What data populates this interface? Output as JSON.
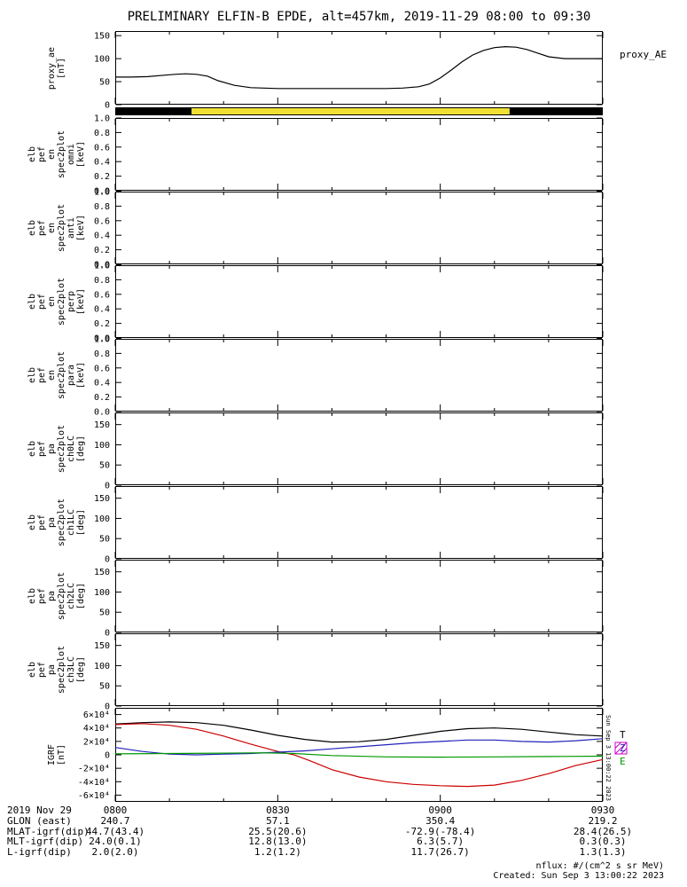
{
  "title": "PRELIMINARY ELFIN-B EPDE, alt=457km, 2019-11-29 08:00 to 09:30",
  "right_label": "proxy_AE",
  "side_timestamp": "Sun Sep  3 13:00:22 2023",
  "footer": {
    "nflux_note": "nflux: #/(cm^2 s sr MeV)",
    "created": "Created: Sun Sep  3 13:00:22 2023"
  },
  "x_axis": {
    "ticks": [
      "0800",
      "0830",
      "0900",
      "0930"
    ],
    "minutes": [
      0,
      30,
      60,
      90
    ],
    "minor_minutes": [
      10,
      20,
      40,
      50,
      70,
      80
    ],
    "range_minutes": [
      0,
      90
    ]
  },
  "ephemeris": {
    "date_label": "2019 Nov 29",
    "rows": [
      {
        "label": "GLON (east)",
        "values": [
          "240.7",
          "57.1",
          "350.4",
          "219.2"
        ]
      },
      {
        "label": "MLAT-igrf(dip)",
        "values": [
          "44.7(43.4)",
          "25.5(20.6)",
          "-72.9(-78.4)",
          "28.4(26.5)"
        ]
      },
      {
        "label": "MLT-igrf(dip)",
        "values": [
          "24.0(0.1)",
          "12.8(13.0)",
          "6.3(5.7)",
          "0.3(0.3)"
        ]
      },
      {
        "label": "L-igrf(dip)",
        "values": [
          "2.0(2.0)",
          "1.2(1.2)",
          "11.7(26.7)",
          "1.3(1.3)"
        ]
      }
    ]
  },
  "chart_data": [
    {
      "id": "proxy_ae",
      "type": "line",
      "ylabel_lines": [
        "proxy_ae",
        "[nT]"
      ],
      "ylim": [
        0,
        160
      ],
      "yticks": [
        0,
        50,
        100,
        150
      ],
      "ytick_labels": [
        "0",
        "50",
        "100",
        "150"
      ],
      "series": [
        {
          "name": "proxy_ae",
          "color": "#000000",
          "x": [
            0,
            3,
            6,
            9,
            11,
            13,
            15,
            17,
            19,
            22,
            25,
            30,
            35,
            40,
            45,
            50,
            53,
            56,
            58,
            60,
            62,
            64,
            66,
            68,
            70,
            72,
            74,
            76,
            78,
            80,
            83,
            86,
            90
          ],
          "y": [
            60,
            60,
            61,
            64,
            66,
            67,
            66,
            62,
            52,
            42,
            37,
            35,
            35,
            35,
            35,
            35,
            36,
            39,
            45,
            58,
            75,
            93,
            108,
            118,
            124,
            126,
            125,
            120,
            112,
            104,
            100,
            100,
            100
          ]
        }
      ]
    },
    {
      "id": "flag_bar",
      "type": "bar-strip",
      "segments": [
        {
          "name": "black-left",
          "start": 0,
          "end": 14.1,
          "color": "#000000"
        },
        {
          "name": "yellow",
          "start": 14.1,
          "end": 72.8,
          "color": "#efe033"
        },
        {
          "name": "black-right",
          "start": 72.8,
          "end": 90,
          "color": "#000000"
        }
      ]
    },
    {
      "id": "en_omni",
      "type": "spectrogram",
      "ylabel_lines": [
        "elb",
        "pef",
        "en",
        "spec2plot",
        "omni",
        "[keV]"
      ],
      "ylim": [
        0,
        1
      ],
      "yticks": [
        0,
        0.2,
        0.4,
        0.6,
        0.8,
        1.0
      ],
      "ytick_labels": [
        "0.0",
        "0.2",
        "0.4",
        "0.6",
        "0.8",
        "1.0"
      ],
      "series": []
    },
    {
      "id": "en_anti",
      "type": "spectrogram",
      "ylabel_lines": [
        "elb",
        "pef",
        "en",
        "spec2plot",
        "anti",
        "[keV]"
      ],
      "ylim": [
        0,
        1
      ],
      "yticks": [
        0,
        0.2,
        0.4,
        0.6,
        0.8,
        1.0
      ],
      "ytick_labels": [
        "0.0",
        "0.2",
        "0.4",
        "0.6",
        "0.8",
        "1.0"
      ],
      "series": []
    },
    {
      "id": "en_perp",
      "type": "spectrogram",
      "ylabel_lines": [
        "elb",
        "pef",
        "en",
        "spec2plot",
        "perp",
        "[keV]"
      ],
      "ylim": [
        0,
        1
      ],
      "yticks": [
        0,
        0.2,
        0.4,
        0.6,
        0.8,
        1.0
      ],
      "ytick_labels": [
        "0.0",
        "0.2",
        "0.4",
        "0.6",
        "0.8",
        "1.0"
      ],
      "series": []
    },
    {
      "id": "en_para",
      "type": "spectrogram",
      "ylabel_lines": [
        "elb",
        "pef",
        "en",
        "spec2plot",
        "para",
        "[keV]"
      ],
      "ylim": [
        0,
        1
      ],
      "yticks": [
        0,
        0.2,
        0.4,
        0.6,
        0.8,
        1.0
      ],
      "ytick_labels": [
        "0.0",
        "0.2",
        "0.4",
        "0.6",
        "0.8",
        "1.0"
      ],
      "series": []
    },
    {
      "id": "pa_ch0",
      "type": "spectrogram",
      "ylabel_lines": [
        "elb",
        "pef",
        "pa",
        "spec2plot",
        "ch0LC",
        "[deg]"
      ],
      "ylim": [
        0,
        180
      ],
      "yticks": [
        0,
        50,
        100,
        150
      ],
      "ytick_labels": [
        "0",
        "50",
        "100",
        "150"
      ],
      "series": []
    },
    {
      "id": "pa_ch1",
      "type": "spectrogram",
      "ylabel_lines": [
        "elb",
        "pef",
        "pa",
        "spec2plot",
        "ch1LC",
        "[deg]"
      ],
      "ylim": [
        0,
        180
      ],
      "yticks": [
        0,
        50,
        100,
        150
      ],
      "ytick_labels": [
        "0",
        "50",
        "100",
        "150"
      ],
      "series": []
    },
    {
      "id": "pa_ch2",
      "type": "spectrogram",
      "ylabel_lines": [
        "elb",
        "pef",
        "pa",
        "spec2plot",
        "ch2LC",
        "[deg]"
      ],
      "ylim": [
        0,
        180
      ],
      "yticks": [
        0,
        50,
        100,
        150
      ],
      "ytick_labels": [
        "0",
        "50",
        "100",
        "150"
      ],
      "series": []
    },
    {
      "id": "pa_ch3",
      "type": "spectrogram",
      "ylabel_lines": [
        "elb",
        "pef",
        "pa",
        "spec2plot",
        "ch3LC",
        "[deg]"
      ],
      "ylim": [
        0,
        180
      ],
      "yticks": [
        0,
        50,
        100,
        150
      ],
      "ytick_labels": [
        "0",
        "50",
        "100",
        "150"
      ],
      "series": []
    },
    {
      "id": "igrf",
      "type": "line",
      "ylabel_lines": [
        "IGRF",
        "[nT]"
      ],
      "ylim": [
        -70000,
        70000
      ],
      "yticks": [
        -60000,
        -40000,
        -20000,
        0,
        20000,
        40000,
        60000
      ],
      "ytick_labels": [
        "-6×10⁴",
        "-4×10⁴",
        "-2×10⁴",
        "0",
        "2×10⁴",
        "4×10⁴",
        "6×10⁴"
      ],
      "legend": [
        {
          "label": "T",
          "color": "#000000"
        },
        {
          "label": "Z",
          "color": "#2222bb",
          "swatch": "hatched"
        },
        {
          "label": "E",
          "color": "#009900"
        }
      ],
      "swatch_color": "#cc00cc",
      "series": [
        {
          "name": "T",
          "color": "#000000",
          "x": [
            0,
            5,
            10,
            15,
            20,
            25,
            30,
            35,
            40,
            45,
            50,
            55,
            60,
            65,
            70,
            75,
            80,
            85,
            90
          ],
          "y": [
            46000,
            48000,
            49000,
            48000,
            44000,
            37000,
            29000,
            23000,
            19000,
            19500,
            23000,
            29000,
            35000,
            39000,
            40000,
            38000,
            34000,
            30000,
            28000
          ]
        },
        {
          "name": "red",
          "color": "#cc0000",
          "x": [
            0,
            5,
            10,
            15,
            20,
            25,
            30,
            33,
            36,
            40,
            45,
            50,
            55,
            60,
            65,
            70,
            75,
            80,
            85,
            90
          ],
          "y": [
            45000,
            46500,
            44000,
            38000,
            28000,
            16000,
            5000,
            0,
            -9000,
            -22000,
            -33000,
            -40000,
            -44000,
            -46000,
            -47000,
            -45000,
            -38000,
            -28000,
            -16000,
            -7000
          ]
        },
        {
          "name": "Z",
          "color": "#2222bb",
          "x": [
            0,
            5,
            10,
            15,
            20,
            25,
            30,
            35,
            40,
            45,
            50,
            55,
            60,
            65,
            70,
            75,
            80,
            85,
            90
          ],
          "y": [
            11000,
            5000,
            1000,
            0,
            1000,
            2000,
            4000,
            6000,
            9000,
            12000,
            15000,
            18000,
            20000,
            22000,
            22000,
            20000,
            19000,
            21000,
            24000
          ]
        },
        {
          "name": "E",
          "color": "#009900",
          "x": [
            0,
            10,
            20,
            27,
            33,
            40,
            50,
            60,
            70,
            80,
            90
          ],
          "y": [
            1500,
            2000,
            2500,
            3000,
            2000,
            -1000,
            -3000,
            -3500,
            -3000,
            -2500,
            -2000
          ]
        }
      ]
    }
  ]
}
